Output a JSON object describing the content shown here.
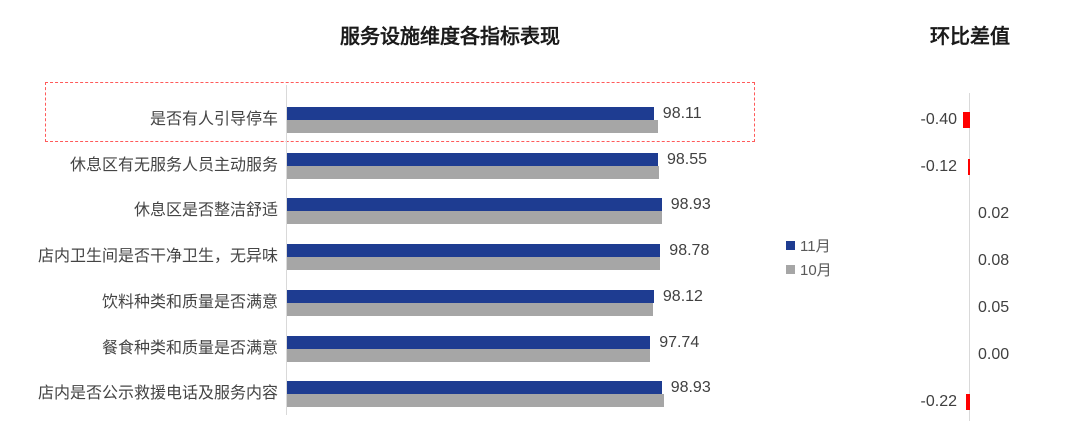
{
  "chart_data": [
    {
      "type": "bar",
      "orientation": "horizontal",
      "title": "服务设施维度各指标表现",
      "categories": [
        "是否有人引导停车",
        "休息区有无服务人员主动服务",
        "休息区是否整洁舒适",
        "店内卫生间是否干净卫生，无异味",
        "饮料种类和质量是否满意",
        "餐食种类和质量是否满意",
        "店内是否公示救援电话及服务内容"
      ],
      "series": [
        {
          "name": "11月",
          "color": "#1e3c91",
          "values": [
            98.11,
            98.55,
            98.93,
            98.78,
            98.12,
            97.74,
            98.93
          ],
          "data_labels": [
            "98.11",
            "98.55",
            "98.93",
            "98.78",
            "98.12",
            "97.74",
            "98.93"
          ]
        },
        {
          "name": "10月",
          "color": "#a6a6a6",
          "values_estimated": [
            98.51,
            98.67,
            98.91,
            98.7,
            98.07,
            97.74,
            99.15
          ]
        }
      ],
      "xlim": [
        60,
        100
      ],
      "grid": false,
      "legend_position": "right-middle",
      "highlight": {
        "category_index": 0,
        "style": "red-dashed-box",
        "color": "#ff5a5a"
      }
    },
    {
      "type": "bar",
      "orientation": "horizontal",
      "title": "环比差值",
      "values": [
        -0.4,
        -0.12,
        0.02,
        0.08,
        0.05,
        0.0,
        -0.22
      ],
      "labels": [
        "-0.40",
        "-0.12",
        "0.02",
        "0.08",
        "0.05",
        "0.00",
        "-0.22"
      ],
      "bar_color": "#ff0000",
      "axis_color": "#d9d9d9"
    }
  ]
}
